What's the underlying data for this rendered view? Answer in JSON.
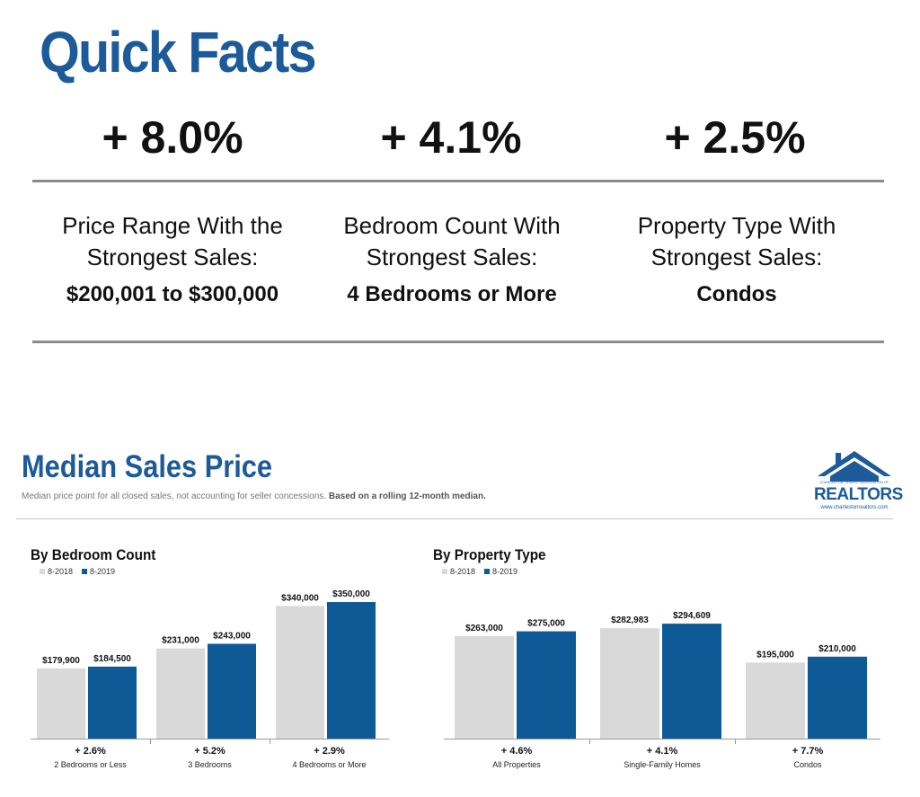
{
  "quick_facts": {
    "title": "Quick Facts",
    "stats": [
      {
        "value": "+ 8.0%",
        "label_lines": [
          "Price Range With the",
          "Strongest Sales:"
        ],
        "detail": "$200,001 to $300,000"
      },
      {
        "value": "+ 4.1%",
        "label_lines": [
          "Bedroom Count With",
          "Strongest Sales:"
        ],
        "detail": "4 Bedrooms or More"
      },
      {
        "value": "+ 2.5%",
        "label_lines": [
          "Property Type With",
          "Strongest Sales:"
        ],
        "detail": "Condos"
      }
    ]
  },
  "median": {
    "title": "Median Sales Price",
    "subtitle": "Median price point for all closed sales, not accounting for seller concessions.",
    "subtitle_bold": "Based on a rolling 12-month median."
  },
  "logo": {
    "small_text": "CHARLESTON TRIDENT ASSOCIATION OF",
    "word": "REALTORS",
    "url": "www.charlestonrealtors.com",
    "icon": "house-roof-icon"
  },
  "colors": {
    "series_2018": "#d9d9d9",
    "series_2019": "#0e5a96",
    "title_blue": "#1c5a9a"
  },
  "chart_data": [
    {
      "type": "bar",
      "title": "By Bedroom Count",
      "categories": [
        "2 Bedrooms or Less",
        "3 Bedrooms",
        "4 Bedrooms or More"
      ],
      "series": [
        {
          "name": "8-2018",
          "values": [
            179900,
            231000,
            340000
          ],
          "labels": [
            "$179,900",
            "$231,000",
            "$340,000"
          ]
        },
        {
          "name": "8-2019",
          "values": [
            184500,
            243000,
            350000
          ],
          "labels": [
            "$184,500",
            "$243,000",
            "$350,000"
          ]
        }
      ],
      "changes": [
        "+ 2.6%",
        "+ 5.2%",
        "+ 2.9%"
      ],
      "ylim": [
        0,
        380000
      ],
      "legend": "top-left"
    },
    {
      "type": "bar",
      "title": "By Property Type",
      "categories": [
        "All Properties",
        "Single-Family Homes",
        "Condos"
      ],
      "series": [
        {
          "name": "8-2018",
          "values": [
            263000,
            282983,
            195000
          ],
          "labels": [
            "$263,000",
            "$282,983",
            "$195,000"
          ]
        },
        {
          "name": "8-2019",
          "values": [
            275000,
            294609,
            210000
          ],
          "labels": [
            "$275,000",
            "$294,609",
            "$210,000"
          ]
        }
      ],
      "changes": [
        "+ 4.6%",
        "+ 4.1%",
        "+ 7.7%"
      ],
      "ylim": [
        0,
        380000
      ],
      "legend": "top-left"
    }
  ]
}
